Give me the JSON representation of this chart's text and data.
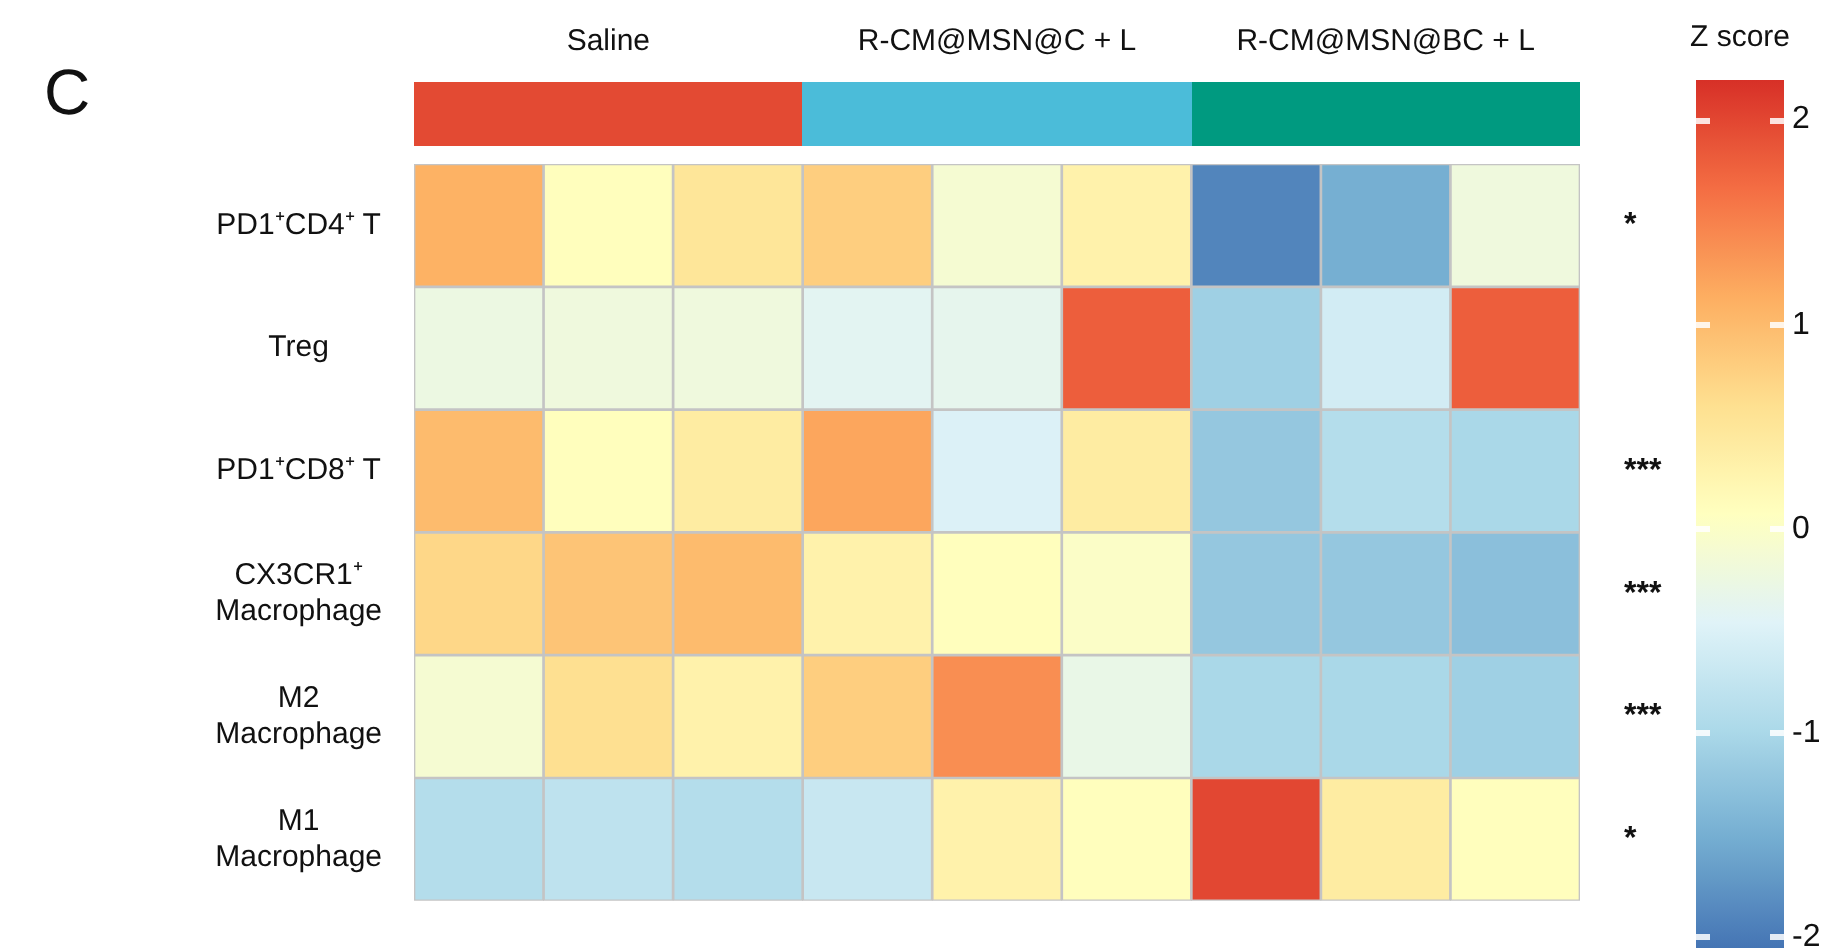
{
  "chart_data": {
    "type": "heatmap",
    "annotations": [
      "C",
      "Saline",
      "R-CM@MSN@C + L",
      "R-CM@MSN@BC + L"
    ],
    "clabel": "Z score",
    "categories": [
      null,
      null,
      null,
      null,
      null,
      null,
      null,
      null,
      null
    ],
    "y_categories": [
      "PD1⁺CD4⁺ T",
      "Treg",
      "PD1⁺CD8⁺ T",
      "CX3CR1⁺\nMacrophage",
      "M2\nMacrophage",
      "M1\nMacrophage"
    ],
    "y2_categories": [
      "*",
      null,
      "***",
      "***",
      "***",
      "*"
    ],
    "cells": [
      [
        1.1,
        0.1,
        0.5,
        0.8,
        -0.1,
        0.3,
        -1.9,
        -1.5,
        -0.2
      ],
      [
        -0.25,
        -0.2,
        -0.2,
        -0.4,
        -0.35,
        1.8,
        -1.1,
        -0.6,
        1.8
      ],
      [
        1.0,
        0.1,
        0.4,
        1.2,
        -0.5,
        0.4,
        -1.2,
        -0.9,
        -1.0
      ],
      [
        0.7,
        0.9,
        1.0,
        0.3,
        0.1,
        0.0,
        -1.2,
        -1.2,
        -1.3
      ],
      [
        -0.1,
        0.6,
        0.3,
        0.8,
        1.4,
        -0.3,
        -1.0,
        -1.0,
        -1.1
      ],
      [
        -0.9,
        -0.8,
        -0.9,
        -0.7,
        0.3,
        0.1,
        2.0,
        0.4,
        0.1
      ]
    ],
    "clim": [
      -2.05,
      2.2
    ],
    "cticks": [
      -2,
      -1,
      0,
      1,
      2
    ]
  }
}
